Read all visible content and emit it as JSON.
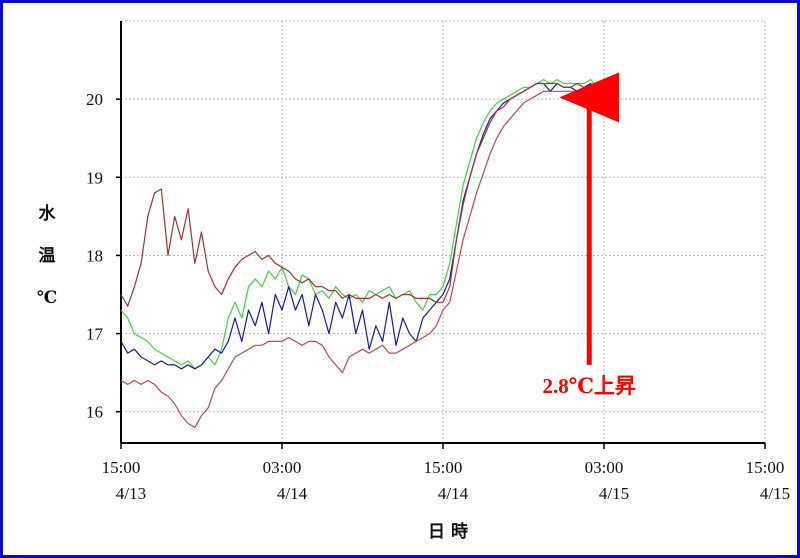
{
  "chart_data": {
    "type": "line",
    "title": "",
    "ylabel_chars": [
      "水",
      "温",
      "℃"
    ],
    "xlabel": "日 時",
    "xlim": [
      0,
      48
    ],
    "ylim": [
      15.6,
      21.0
    ],
    "grid": true,
    "legend": "none",
    "y_ticks": [
      16,
      17,
      18,
      19,
      20
    ],
    "x_ticks": [
      {
        "x": 0,
        "line1": "15:00",
        "line2": "4/13"
      },
      {
        "x": 12,
        "line1": "03:00",
        "line2": "4/14"
      },
      {
        "x": 24,
        "line1": "15:00",
        "line2": "4/14"
      },
      {
        "x": 36,
        "line1": "03:00",
        "line2": "4/15"
      },
      {
        "x": 48,
        "line1": "15:00",
        "line2": "4/15"
      }
    ],
    "annotation": {
      "text": "2.8℃上昇",
      "color": "#ff0000",
      "arrow_x": 34.9,
      "arrow_from_y": 16.6,
      "arrow_to_y": 20.15
    },
    "series": [
      {
        "color": "#3cd83c",
        "x": [
          0,
          0.5,
          1,
          1.5,
          2,
          2.5,
          3,
          3.5,
          4,
          4.5,
          5,
          5.5,
          6,
          6.5,
          7,
          7.5,
          8,
          8.5,
          9,
          9.5,
          10,
          10.5,
          11,
          11.5,
          12,
          12.5,
          13,
          13.5,
          14,
          14.5,
          15,
          15.5,
          16,
          16.5,
          17,
          17.5,
          18,
          18.5,
          19,
          19.5,
          20,
          20.5,
          21,
          21.5,
          22,
          22.5,
          23,
          23.5,
          24,
          24.5,
          25,
          25.5,
          26,
          26.5,
          27,
          27.5,
          28,
          28.5,
          29,
          29.5,
          30,
          30.5,
          31,
          31.5,
          32,
          32.5,
          33,
          33.5,
          34,
          34.5,
          35,
          35.5,
          36,
          36.5
        ],
        "y": [
          17.3,
          17.2,
          17.0,
          16.95,
          16.9,
          16.8,
          16.75,
          16.7,
          16.65,
          16.6,
          16.65,
          16.55,
          16.6,
          16.7,
          16.6,
          16.8,
          17.2,
          17.4,
          17.2,
          17.6,
          17.7,
          17.6,
          17.8,
          17.7,
          17.85,
          17.6,
          17.5,
          17.75,
          17.7,
          17.5,
          17.55,
          17.45,
          17.6,
          17.5,
          17.45,
          17.5,
          17.4,
          17.55,
          17.5,
          17.55,
          17.6,
          17.45,
          17.5,
          17.55,
          17.4,
          17.3,
          17.5,
          17.5,
          17.6,
          17.9,
          18.4,
          18.9,
          19.2,
          19.5,
          19.7,
          19.85,
          19.95,
          20.0,
          20.05,
          20.1,
          20.15,
          20.15,
          20.2,
          20.25,
          20.2,
          20.25,
          20.2,
          20.2,
          20.2,
          20.2,
          20.25,
          20.15,
          20.15,
          20.1
        ]
      },
      {
        "color": "#1a1a9e",
        "x": [
          0,
          0.5,
          1,
          1.5,
          2,
          2.5,
          3,
          3.5,
          4,
          4.5,
          5,
          5.5,
          6,
          6.5,
          7,
          7.5,
          8,
          8.5,
          9,
          9.5,
          10,
          10.5,
          11,
          11.5,
          12,
          12.5,
          13,
          13.5,
          14,
          14.5,
          15,
          15.5,
          16,
          16.5,
          17,
          17.5,
          18,
          18.5,
          19,
          19.5,
          20,
          20.5,
          21,
          21.5,
          22,
          22.5,
          23,
          23.5,
          24,
          24.5,
          25,
          25.5,
          26,
          26.5,
          27,
          27.5,
          28,
          28.5,
          29,
          29.5,
          30,
          30.5,
          31,
          31.5,
          32,
          32.5,
          33,
          33.5,
          34,
          34.5,
          35,
          35.5,
          36,
          36.5
        ],
        "y": [
          16.9,
          16.75,
          16.8,
          16.7,
          16.65,
          16.6,
          16.65,
          16.6,
          16.6,
          16.55,
          16.6,
          16.55,
          16.6,
          16.7,
          16.8,
          16.75,
          16.9,
          17.2,
          16.9,
          17.3,
          17.1,
          17.4,
          17.0,
          17.5,
          17.3,
          17.6,
          17.3,
          17.5,
          17.1,
          17.5,
          17.3,
          17.0,
          17.4,
          17.2,
          17.5,
          17.0,
          17.3,
          16.8,
          17.1,
          16.9,
          17.4,
          16.85,
          17.2,
          17.0,
          16.9,
          17.2,
          17.3,
          17.4,
          17.5,
          17.7,
          18.2,
          18.7,
          19.0,
          19.3,
          19.55,
          19.75,
          19.85,
          19.95,
          20.0,
          20.05,
          20.1,
          20.15,
          20.2,
          20.2,
          20.1,
          20.2,
          20.15,
          20.15,
          20.1,
          20.15,
          20.2,
          20.1,
          20.1,
          20.1
        ]
      },
      {
        "color": "#a83232",
        "x": [
          0,
          0.5,
          1,
          1.5,
          2,
          2.5,
          3,
          3.5,
          4,
          4.5,
          5,
          5.5,
          6,
          6.5,
          7,
          7.5,
          8,
          8.5,
          9,
          9.5,
          10,
          10.5,
          11,
          11.5,
          12,
          12.5,
          13,
          13.5,
          14,
          14.5,
          15,
          15.5,
          16,
          16.5,
          17,
          17.5,
          18,
          18.5,
          19,
          19.5,
          20,
          20.5,
          21,
          21.5,
          22,
          22.5,
          23,
          23.5,
          24,
          24.5,
          25,
          25.5,
          26,
          26.5,
          27,
          27.5,
          28,
          28.5,
          29,
          29.5,
          30,
          30.5,
          31,
          31.5,
          32,
          32.5,
          33,
          33.5,
          34,
          34.5,
          35,
          35.5,
          36,
          36.5
        ],
        "y": [
          17.5,
          17.35,
          17.6,
          17.9,
          18.5,
          18.8,
          18.85,
          18.0,
          18.5,
          18.2,
          18.6,
          17.9,
          18.3,
          17.8,
          17.6,
          17.5,
          17.7,
          17.85,
          17.95,
          18.0,
          18.05,
          17.95,
          18.0,
          17.9,
          17.85,
          17.8,
          17.7,
          17.65,
          17.7,
          17.6,
          17.6,
          17.55,
          17.55,
          17.45,
          17.5,
          17.45,
          17.45,
          17.45,
          17.5,
          17.45,
          17.5,
          17.45,
          17.5,
          17.5,
          17.45,
          17.45,
          17.45,
          17.4,
          17.4,
          17.6,
          18.2,
          18.65,
          19.0,
          19.3,
          19.5,
          19.7,
          19.85,
          19.9,
          20.0,
          20.05,
          20.1,
          20.15,
          20.2,
          20.2,
          20.2,
          20.2,
          20.15,
          20.15,
          20.2,
          20.15,
          20.15,
          20.1,
          20.1,
          20.1
        ]
      },
      {
        "color": "#c04a4a",
        "x": [
          0,
          0.5,
          1,
          1.5,
          2,
          2.5,
          3,
          3.5,
          4,
          4.5,
          5,
          5.5,
          6,
          6.5,
          7,
          7.5,
          8,
          8.5,
          9,
          9.5,
          10,
          10.5,
          11,
          11.5,
          12,
          12.5,
          13,
          13.5,
          14,
          14.5,
          15,
          15.5,
          16,
          16.5,
          17,
          17.5,
          18,
          18.5,
          19,
          19.5,
          20,
          20.5,
          21,
          21.5,
          22,
          22.5,
          23,
          23.5,
          24,
          24.5,
          25,
          25.5,
          26,
          26.5,
          27,
          27.5,
          28,
          28.5,
          29,
          29.5,
          30,
          30.5,
          31,
          31.5,
          32,
          32.5,
          33,
          33.5,
          34,
          34.5,
          35,
          35.5,
          36,
          36.5
        ],
        "y": [
          16.4,
          16.35,
          16.4,
          16.35,
          16.4,
          16.35,
          16.25,
          16.2,
          16.1,
          15.95,
          15.85,
          15.8,
          15.95,
          16.05,
          16.3,
          16.4,
          16.55,
          16.7,
          16.75,
          16.8,
          16.85,
          16.85,
          16.9,
          16.9,
          16.9,
          16.95,
          16.9,
          16.85,
          16.9,
          16.9,
          16.85,
          16.7,
          16.6,
          16.5,
          16.7,
          16.75,
          16.8,
          16.75,
          16.8,
          16.85,
          16.75,
          16.75,
          16.8,
          16.85,
          16.9,
          16.95,
          17.0,
          17.1,
          17.3,
          17.4,
          17.8,
          18.2,
          18.5,
          18.8,
          19.05,
          19.3,
          19.5,
          19.65,
          19.75,
          19.85,
          19.95,
          20.0,
          20.05,
          20.1,
          20.1,
          20.1,
          20.1,
          20.1,
          20.1,
          20.1,
          20.05,
          20.05,
          20.05,
          20.05
        ]
      }
    ]
  }
}
